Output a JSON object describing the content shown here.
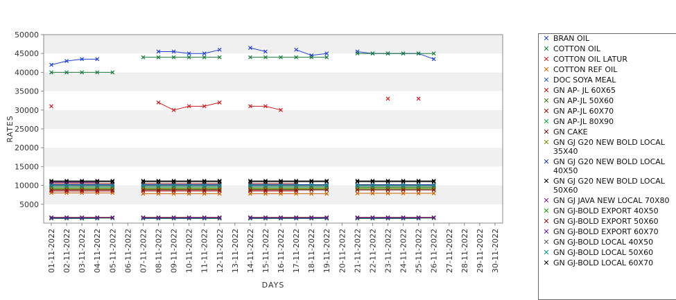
{
  "chart_data": {
    "type": "line",
    "title": "",
    "xlabel": "DAYS",
    "ylabel": "RATES",
    "ylim": [
      0,
      50000
    ],
    "yticks": [
      5000,
      10000,
      15000,
      20000,
      25000,
      30000,
      35000,
      40000,
      45000,
      50000
    ],
    "categories": [
      "01-11-2022",
      "02-11-2022",
      "03-11-2022",
      "04-11-2022",
      "05-11-2022",
      "06-11-2022",
      "07-11-2022",
      "08-11-2022",
      "09-11-2022",
      "10-11-2022",
      "11-11-2022",
      "12-11-2022",
      "13-11-2022",
      "14-11-2022",
      "15-11-2022",
      "16-11-2022",
      "17-11-2022",
      "18-11-2022",
      "19-11-2022",
      "20-11-2022",
      "21-11-2022",
      "22-11-2022",
      "23-11-2022",
      "24-11-2022",
      "25-11-2022",
      "26-11-2022",
      "27-11-2022",
      "28-11-2022",
      "29-11-2022",
      "30-11-2022"
    ],
    "grid": "horizontal bands",
    "legend_position": "right",
    "series": [
      {
        "name": "BRAN OIL",
        "color": "#1f3fd0",
        "values": [
          42000,
          43000,
          43500,
          43500,
          null,
          null,
          null,
          45500,
          45500,
          45000,
          45000,
          46000,
          null,
          46500,
          45500,
          null,
          46000,
          44500,
          45000,
          null,
          45500,
          45000,
          45000,
          45000,
          45000,
          43500,
          null,
          null,
          null,
          null
        ]
      },
      {
        "name": "COTTON OIL",
        "color": "#1a7a3a",
        "values": [
          40000,
          40000,
          40000,
          40000,
          40000,
          null,
          44000,
          44000,
          44000,
          44000,
          44000,
          44000,
          null,
          44000,
          44000,
          44000,
          44000,
          44000,
          44000,
          null,
          45000,
          45000,
          45000,
          45000,
          45000,
          45000,
          null,
          null,
          null,
          null
        ]
      },
      {
        "name": "COTTON OIL LATUR",
        "color": "#c81e1e",
        "values": [
          31000,
          null,
          null,
          null,
          null,
          null,
          null,
          32000,
          30000,
          31000,
          31000,
          32000,
          null,
          31000,
          31000,
          30000,
          null,
          null,
          null,
          null,
          null,
          null,
          33000,
          null,
          33000,
          null,
          null,
          null,
          null,
          null
        ]
      },
      {
        "name": "COTTON REF OIL",
        "color": "#c86400",
        "values": [
          8000,
          8000,
          8000,
          8000,
          8000,
          null,
          7800,
          7800,
          7800,
          7800,
          7800,
          7800,
          null,
          7800,
          7800,
          7800,
          7800,
          7800,
          7800,
          null,
          7900,
          7900,
          7900,
          7900,
          7900,
          7900,
          null,
          null,
          null,
          null
        ]
      },
      {
        "name": "DOC SOYA MEAL",
        "color": "#2a5ab0",
        "values": [
          1200,
          1200,
          1200,
          1200,
          null,
          null,
          1200,
          1200,
          1200,
          1200,
          1200,
          1200,
          null,
          1200,
          1200,
          1200,
          1200,
          1200,
          1200,
          null,
          1200,
          1200,
          1200,
          1200,
          1200,
          null,
          null,
          null,
          null,
          null
        ]
      },
      {
        "name": "GN AP- JL 60X65",
        "color": "#b41414",
        "values": [
          8500,
          8500,
          8500,
          8500,
          8500,
          null,
          8500,
          8500,
          8500,
          8500,
          8500,
          8500,
          null,
          8500,
          8500,
          8500,
          8500,
          null,
          null,
          null,
          null,
          null,
          null,
          null,
          null,
          null,
          null,
          null,
          null,
          null
        ]
      },
      {
        "name": "GN AP-JL 50X60",
        "color": "#3c7a14",
        "values": [
          9000,
          9000,
          9000,
          9000,
          9000,
          null,
          9000,
          9000,
          9000,
          9000,
          9000,
          9000,
          null,
          9000,
          9000,
          9000,
          9000,
          9000,
          9000,
          null,
          9000,
          9000,
          9000,
          9000,
          9000,
          9000,
          null,
          null,
          null,
          null
        ]
      },
      {
        "name": "GN AP-JL 60X70",
        "color": "#8c1010",
        "values": [
          10500,
          10500,
          10500,
          10500,
          10500,
          null,
          10500,
          10500,
          10500,
          10500,
          10500,
          10500,
          null,
          10500,
          10500,
          10500,
          10500,
          null,
          null,
          null,
          null,
          null,
          null,
          null,
          null,
          null,
          null,
          null,
          null,
          null
        ]
      },
      {
        "name": "GN AP-JL 80X90",
        "color": "#14a03c",
        "values": [
          9500,
          9500,
          9500,
          9500,
          9500,
          null,
          9500,
          9500,
          9500,
          9500,
          9500,
          9500,
          null,
          9500,
          9500,
          9500,
          9500,
          9500,
          9500,
          null,
          9500,
          9500,
          9500,
          9500,
          9500,
          9500,
          null,
          null,
          null,
          null
        ]
      },
      {
        "name": "GN CAKE",
        "color": "#6a1010",
        "values": [
          1500,
          1500,
          1500,
          1500,
          1500,
          null,
          1500,
          1500,
          1500,
          1500,
          1500,
          1500,
          null,
          1500,
          1500,
          1500,
          1500,
          1500,
          1500,
          null,
          1500,
          1500,
          1500,
          1500,
          1500,
          1500,
          null,
          null,
          null,
          null
        ]
      },
      {
        "name": "GN GJ G20 NEW BOLD LOCAL 35X40",
        "color": "#7a8c00",
        "values": [
          9200,
          9200,
          9200,
          9200,
          9200,
          null,
          9200,
          9200,
          9200,
          9200,
          9200,
          9200,
          null,
          9200,
          9200,
          9200,
          9200,
          9200,
          9200,
          null,
          9300,
          9300,
          9300,
          9300,
          9300,
          9300,
          null,
          null,
          null,
          null
        ]
      },
      {
        "name": "GN GJ G20 NEW BOLD LOCAL 40X50",
        "color": "#1e3c96",
        "values": [
          10200,
          10200,
          10200,
          10200,
          10200,
          null,
          10200,
          10200,
          10200,
          10200,
          10200,
          10200,
          null,
          10200,
          10200,
          10200,
          10200,
          10200,
          10200,
          null,
          10200,
          10200,
          10200,
          10200,
          10200,
          10200,
          null,
          null,
          null,
          null
        ]
      },
      {
        "name": "GN GJ G20 NEW BOLD LOCAL 50X60",
        "color": "#000000",
        "values": [
          11000,
          11000,
          11000,
          11000,
          11000,
          null,
          11000,
          11000,
          11000,
          11000,
          11000,
          11000,
          null,
          11000,
          11000,
          11000,
          11000,
          11000,
          11000,
          null,
          11000,
          11000,
          11000,
          11000,
          11000,
          11000,
          null,
          null,
          null,
          null
        ]
      },
      {
        "name": "GN GJ JAVA NEW LOCAL 70X80",
        "color": "#7a1e8c",
        "values": [
          10800,
          10800,
          10800,
          10800,
          null,
          null,
          null,
          null,
          null,
          null,
          null,
          null,
          null,
          null,
          null,
          null,
          null,
          null,
          null,
          null,
          null,
          null,
          null,
          null,
          null,
          null,
          null,
          null,
          null,
          null
        ]
      },
      {
        "name": "GN GJ-BOLD EXPORT 40X50",
        "color": "#14a014",
        "values": [
          1300,
          1300,
          1300,
          1300,
          1300,
          null,
          1300,
          1300,
          1300,
          1300,
          1300,
          1300,
          null,
          1300,
          1300,
          1300,
          1300,
          1300,
          1300,
          null,
          1300,
          1300,
          1300,
          1300,
          1300,
          1300,
          null,
          null,
          null,
          null
        ]
      },
      {
        "name": "GN GJ-BOLD EXPORT 50X60",
        "color": "#8c1414",
        "values": [
          8800,
          8800,
          8800,
          8800,
          8800,
          null,
          8800,
          8800,
          8800,
          8800,
          8800,
          8800,
          null,
          8800,
          8800,
          8800,
          8800,
          8800,
          8800,
          null,
          8800,
          8800,
          8800,
          8800,
          8800,
          8800,
          null,
          null,
          null,
          null
        ]
      },
      {
        "name": "GN GJ-BOLD EXPORT 60X70",
        "color": "#6414a0",
        "values": [
          1400,
          1400,
          1400,
          1400,
          1400,
          null,
          1400,
          1400,
          1400,
          1400,
          1400,
          1400,
          null,
          1400,
          1400,
          1400,
          1400,
          1400,
          1400,
          null,
          1400,
          1400,
          1400,
          1400,
          1400,
          1400,
          null,
          null,
          null,
          null
        ]
      },
      {
        "name": "GN GJ-BOLD LOCAL 40X50",
        "color": "#5a5a5a",
        "values": [
          9800,
          9800,
          9800,
          9800,
          9800,
          null,
          9800,
          9800,
          9800,
          9800,
          9800,
          9800,
          null,
          9800,
          9800,
          9800,
          9800,
          9800,
          9800,
          null,
          9800,
          9800,
          9800,
          9800,
          9800,
          9800,
          null,
          null,
          null,
          null
        ]
      },
      {
        "name": "GN GJ-BOLD LOCAL 50X60",
        "color": "#148c8c",
        "values": [
          10000,
          10000,
          10000,
          10000,
          10000,
          null,
          10000,
          10000,
          10000,
          10000,
          10000,
          10000,
          null,
          10000,
          10000,
          10000,
          10000,
          10000,
          10000,
          null,
          10000,
          10000,
          10000,
          10000,
          10000,
          10000,
          null,
          null,
          null,
          null
        ]
      },
      {
        "name": "GN GJ-BOLD LOCAL 60X70",
        "color": "#000000",
        "values": [
          11200,
          11200,
          11200,
          11200,
          11200,
          null,
          11200,
          11200,
          11200,
          11200,
          11200,
          11200,
          null,
          11200,
          11200,
          11200,
          11200,
          11200,
          11200,
          null,
          11200,
          11200,
          11200,
          11200,
          11200,
          11200,
          null,
          null,
          null,
          null
        ]
      }
    ]
  }
}
